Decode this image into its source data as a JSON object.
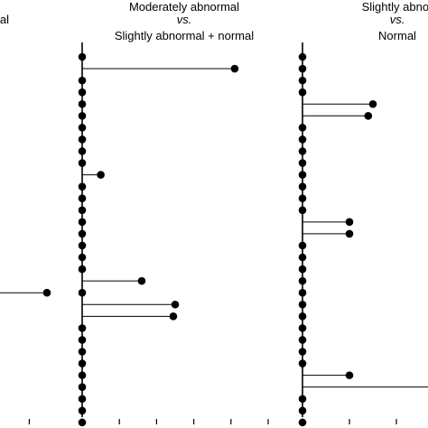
{
  "chart_data": [
    {
      "type": "lollipop",
      "title_lines": [
        "al"
      ],
      "xlim": [
        0,
        10
      ],
      "rows": [
        null,
        null,
        null,
        null,
        null,
        null,
        null,
        null,
        null,
        null,
        null,
        null,
        null,
        null,
        null,
        null,
        null,
        null,
        null,
        null,
        7.5,
        null,
        null,
        null,
        null,
        null,
        null,
        null,
        null,
        null,
        null,
        null
      ]
    },
    {
      "type": "lollipop",
      "title_lines": [
        "Moderately abnormal",
        "vs.",
        "Slightly abnormal + normal"
      ],
      "xlim": [
        0,
        10
      ],
      "rows": [
        0,
        8.2,
        0,
        0,
        0,
        0,
        0,
        0,
        0,
        0,
        1.0,
        0,
        0,
        0,
        0,
        0,
        0,
        0,
        0,
        3.2,
        0,
        5.0,
        4.9,
        0,
        0,
        0,
        0,
        0,
        0,
        0,
        0,
        0
      ]
    },
    {
      "type": "lollipop",
      "title_lines": [
        "Slightly abnor",
        "vs.",
        "Normal"
      ],
      "xlim": [
        0,
        10
      ],
      "rows": [
        0,
        0,
        0,
        0,
        1.5,
        1.4,
        0,
        0,
        0,
        0,
        0,
        0,
        0,
        0,
        1.0,
        1.0,
        0,
        0,
        0,
        0,
        0,
        0,
        0,
        0,
        0,
        0,
        0,
        1.0,
        3.5,
        0,
        0,
        0
      ]
    }
  ]
}
